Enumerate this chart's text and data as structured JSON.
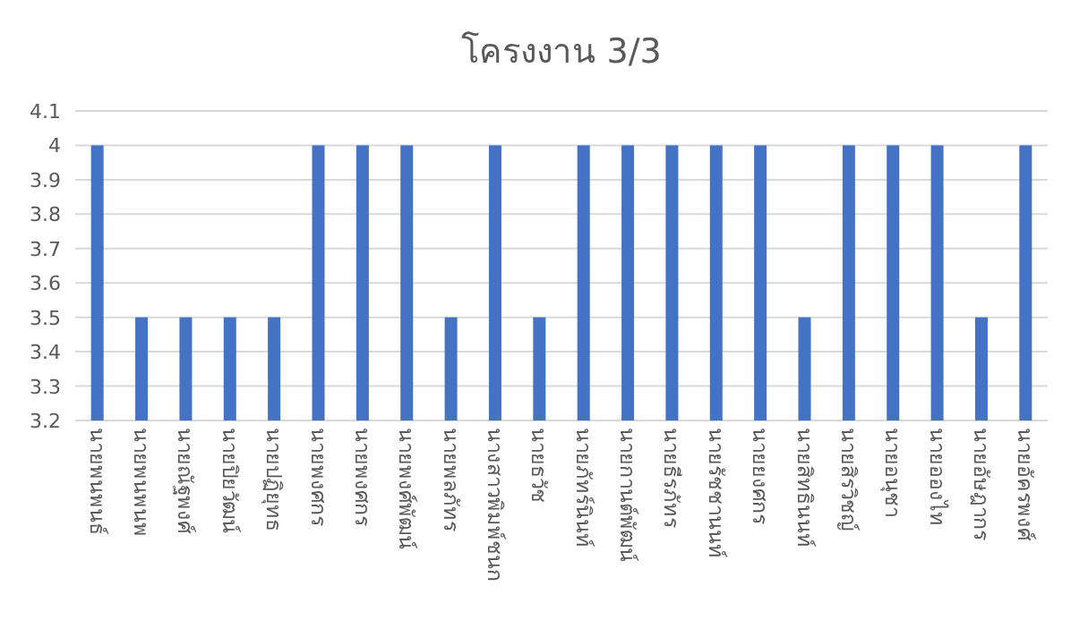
{
  "chart_data": {
    "type": "bar",
    "title": "โครงงาน 3/3",
    "categories": [
      "นายพนพนธ์",
      "นายพนพนพ",
      "นายณัฐพงศ์",
      "นายปิยวัฒน์",
      "นายปฏิยุทธ",
      "นายพงศกร",
      "นายพงศกร",
      "นายพงศ์พัฒน์",
      "นายพลภัทร",
      "นางสาวพิมพ์ชนก",
      "นายธวัช",
      "นายภัทร์นินท์",
      "นายกานต์พัฒน์",
      "นายธีรภัทร",
      "นายรัชชานนท์",
      "นายยงศกร",
      "นายสิทธินนท์",
      "นายสิรวิชญ์",
      "นายอนุชา",
      "นายอองไท",
      "นายอัษฎากร",
      "นายอัครพงศ์"
    ],
    "values": [
      4,
      3.5,
      3.5,
      3.5,
      3.5,
      4,
      4,
      4,
      3.5,
      4,
      3.5,
      4,
      4,
      4,
      4,
      4,
      3.5,
      4,
      4,
      4,
      3.5,
      4
    ],
    "color": "#4472c4",
    "ylim": [
      3.2,
      4.1
    ],
    "yticks": [
      3.2,
      3.3,
      3.4,
      3.5,
      3.6,
      3.7,
      3.8,
      3.9,
      4,
      4.1
    ],
    "grid": "y"
  }
}
